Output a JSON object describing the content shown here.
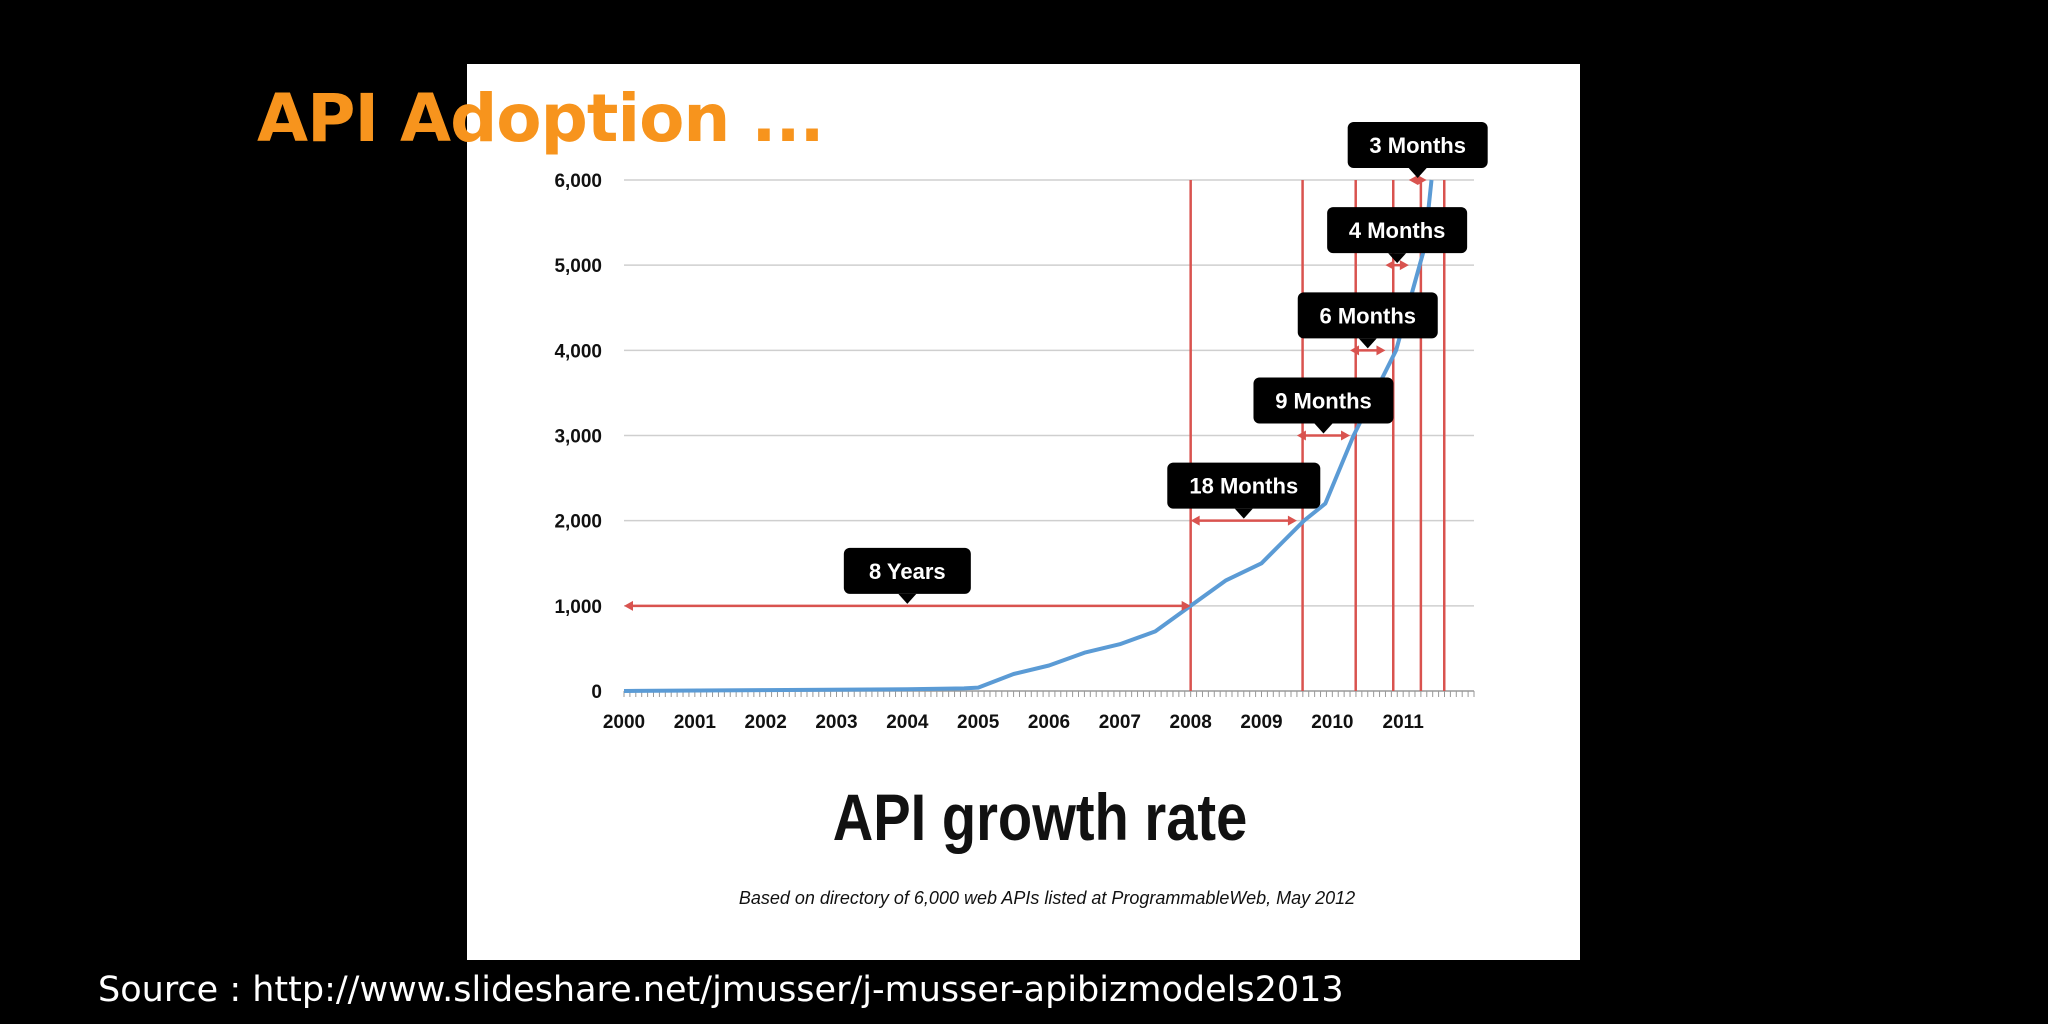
{
  "slide": {
    "title": "API Adoption ...",
    "source": "Source : http://www.slideshare.net/jmusser/j-musser-apibizmodels2013"
  },
  "colors": {
    "background": "#000000",
    "title": "#f7941d",
    "panel": "#ffffff",
    "line": "#5b9bd5",
    "marker": "#d9534f",
    "callout": "#000000"
  },
  "chart_data": {
    "type": "line",
    "title": "API growth rate",
    "subtitle": "Based on directory of 6,000 web APIs listed at ProgrammableWeb, May 2012",
    "xlabel": "",
    "ylabel": "",
    "xlim": [
      2000,
      2012
    ],
    "ylim": [
      0,
      6000
    ],
    "x_ticks": [
      "2000",
      "2001",
      "2002",
      "2003",
      "2004",
      "2005",
      "2006",
      "2007",
      "2008",
      "2009",
      "2010",
      "2011"
    ],
    "y_ticks": [
      "0",
      "1,000",
      "2,000",
      "3,000",
      "4,000",
      "5,000",
      "6,000"
    ],
    "y_tick_values": [
      0,
      1000,
      2000,
      3000,
      4000,
      5000,
      6000
    ],
    "grid": true,
    "legend": "none",
    "series": [
      {
        "x": [
          2000,
          2002,
          2004,
          2004.8,
          2005,
          2005.5,
          2006,
          2006.5,
          2007,
          2007.5,
          2008,
          2008.5,
          2009,
          2009.3,
          2009.6,
          2009.9,
          2010.1,
          2010.3,
          2010.6,
          2010.9,
          2011.1,
          2011.3,
          2011.4
        ],
        "y": [
          0,
          10,
          20,
          30,
          40,
          200,
          300,
          450,
          550,
          700,
          1000,
          1300,
          1500,
          1750,
          2000,
          2200,
          2600,
          3000,
          3500,
          4000,
          4600,
          5200,
          6000
        ]
      }
    ],
    "markers": [
      2008,
      2009.58,
      2010.33,
      2010.86,
      2011.25,
      2011.58
    ],
    "annotations": [
      {
        "label": "8 Years",
        "from": 2000,
        "to": 2008,
        "y": 1000
      },
      {
        "label": "18 Months",
        "from": 2008,
        "to": 2009.5,
        "y": 2000
      },
      {
        "label": "9 Months",
        "from": 2009.5,
        "to": 2010.25,
        "y": 3000
      },
      {
        "label": "6 Months",
        "from": 2010.25,
        "to": 2010.75,
        "y": 4000
      },
      {
        "label": "4 Months",
        "from": 2010.75,
        "to": 2011.08,
        "y": 5000
      },
      {
        "label": "3 Months",
        "from": 2011.08,
        "to": 2011.33,
        "y": 6000
      }
    ]
  }
}
